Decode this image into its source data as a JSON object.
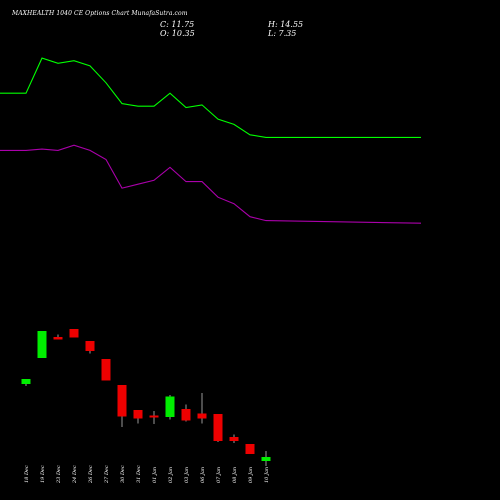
{
  "header": {
    "title": "MAXHEALTH 1040 CE Options Chart MunafaSutra.com",
    "c": "C: 11.75",
    "o": "O: 10.35",
    "h": "H: 14.55",
    "l": "L: 7.35"
  },
  "colors": {
    "background": "#000000",
    "up": "#00ee00",
    "down": "#ee0000",
    "upper_band": "#00ff00",
    "lower_band": "#aa00aa",
    "wick": "#ffffff"
  },
  "chart_data": {
    "type": "candlestick",
    "title": "MAXHEALTH 1040 CE Options Chart MunafaSutra.com",
    "grid": false,
    "categories": [
      "18 Dec",
      "19 Dec",
      "23 Dec",
      "24 Dec",
      "26 Dec",
      "27 Dec",
      "30 Dec",
      "31 Dec",
      "01 Jan",
      "02 Jan",
      "03 Jan",
      "06 Jan",
      "07 Jan",
      "08 Jan",
      "09 Jan",
      "10 Jan"
    ],
    "candles": [
      {
        "o": 68.0,
        "h": 72.0,
        "l": 66.0,
        "c": 73.0
      },
      {
        "o": 94.0,
        "h": 121.0,
        "l": 94.0,
        "c": 121.0
      },
      {
        "o": 115.0,
        "h": 117.5,
        "l": 112.5,
        "c": 112.5
      },
      {
        "o": 123.0,
        "h": 123.0,
        "l": 114.5,
        "c": 114.5
      },
      {
        "o": 111.0,
        "h": 111.0,
        "l": 98.5,
        "c": 101.0
      },
      {
        "o": 93.0,
        "h": 93.0,
        "l": 71.5,
        "c": 71.5
      },
      {
        "o": 67.0,
        "h": 67.0,
        "l": 25.0,
        "c": 35.5
      },
      {
        "o": 42.0,
        "h": 42.0,
        "l": 28.5,
        "c": 33.5
      },
      {
        "o": 36.5,
        "h": 41.0,
        "l": 28.0,
        "c": 34.5
      },
      {
        "o": 35.0,
        "h": 57.0,
        "l": 32.5,
        "c": 55.5
      },
      {
        "o": 43.0,
        "h": 47.5,
        "l": 30.5,
        "c": 31.5
      },
      {
        "o": 38.5,
        "h": 59.0,
        "l": 28.5,
        "c": 33.5
      },
      {
        "o": 38.0,
        "h": 38.0,
        "l": 10.0,
        "c": 11.0
      },
      {
        "o": 15.0,
        "h": 17.5,
        "l": 9.0,
        "c": 11.0
      },
      {
        "o": 8.0,
        "h": 8.0,
        "l": -1.5,
        "c": -2.0
      },
      {
        "o": -9.0,
        "h": 1.0,
        "l": -14.0,
        "c": -5.0
      }
    ],
    "bands": {
      "x_index": [
        -1,
        0,
        1,
        2,
        3,
        4,
        5,
        6,
        7,
        8,
        9,
        10,
        11,
        12,
        13,
        14,
        15,
        16
      ],
      "upper": [
        276,
        276,
        303,
        299,
        301,
        297,
        284,
        268,
        266,
        266,
        276,
        265,
        267,
        256,
        252,
        244,
        242,
        242
      ],
      "lower": [
        232,
        232,
        233,
        232,
        236,
        232,
        225,
        203,
        206,
        209,
        219,
        208,
        208,
        196,
        191,
        181,
        178,
        176
      ]
    }
  }
}
